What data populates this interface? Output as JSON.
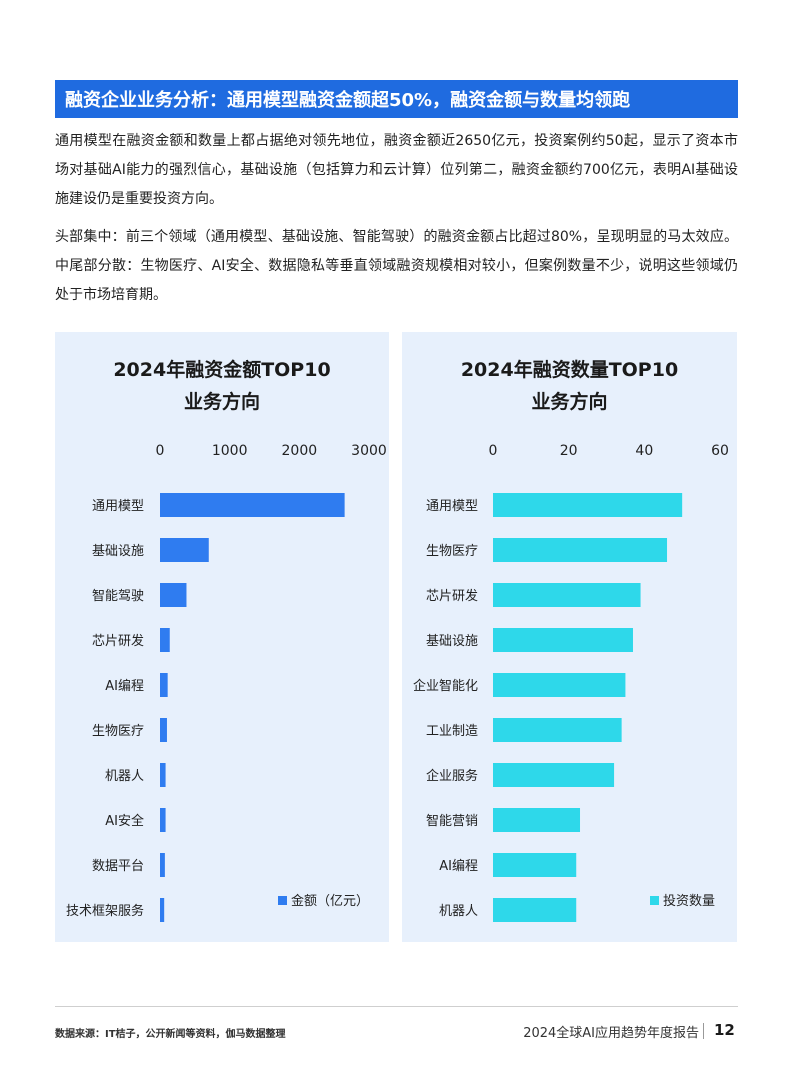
{
  "header": {
    "title": "融资企业业务分析：通用模型融资金额超50%，融资金额与数量均领跑"
  },
  "paragraphs": [
    "通用模型在融资金额和数量上都占据绝对领先地位，融资金额近2650亿元，投资案例约50起，显示了资本市场对基础AI能力的强烈信心，基础设施（包括算力和云计算）位列第二，融资金额约700亿元，表明AI基础设施建设仍是重要投资方向。",
    "头部集中：前三个领域（通用模型、基础设施、智能驾驶）的融资金额占比超过80%，呈现明显的马太效应。中尾部分散：生物医疗、AI安全、数据隐私等垂直领域融资规模相对较小，但案例数量不少，说明这些领域仍处于市场培育期。"
  ],
  "chart_data": [
    {
      "type": "bar",
      "orientation": "horizontal",
      "title": "2024年融资金额TOP10业务方向",
      "title_lines": [
        "2024年融资金额TOP10",
        "业务方向"
      ],
      "categories": [
        "通用模型",
        "基础设施",
        "智能驾驶",
        "芯片研发",
        "AI编程",
        "生物医疗",
        "机器人",
        "AI安全",
        "数据平台",
        "技术框架服务"
      ],
      "series": [
        {
          "name": "金额（亿元）",
          "values": [
            2650,
            700,
            380,
            140,
            110,
            100,
            80,
            80,
            70,
            60
          ],
          "color": "#2f7cf0"
        }
      ],
      "xlim": [
        0,
        3000
      ],
      "xticks": [
        0,
        1000,
        2000,
        3000
      ],
      "axis_position": "top",
      "grid": false,
      "legend": "bottom-right"
    },
    {
      "type": "bar",
      "orientation": "horizontal",
      "title": "2024年融资数量TOP10业务方向",
      "title_lines": [
        "2024年融资数量TOP10",
        "业务方向"
      ],
      "categories": [
        "通用模型",
        "生物医疗",
        "芯片研发",
        "基础设施",
        "企业智能化",
        "工业制造",
        "企业服务",
        "智能营销",
        "AI编程",
        "机器人"
      ],
      "series": [
        {
          "name": "投资数量",
          "values": [
            50,
            46,
            39,
            37,
            35,
            34,
            32,
            23,
            22,
            22
          ],
          "color": "#2ed8ea"
        }
      ],
      "xlim": [
        0,
        60
      ],
      "xticks": [
        0,
        20,
        40,
        60
      ],
      "axis_position": "top",
      "grid": false,
      "legend": "bottom-right"
    }
  ],
  "footer": {
    "source": "数据来源：IT桔子，公开新闻等资料，伽马数据整理",
    "report": "2024全球AI应用趋势年度报告",
    "page": "12"
  }
}
